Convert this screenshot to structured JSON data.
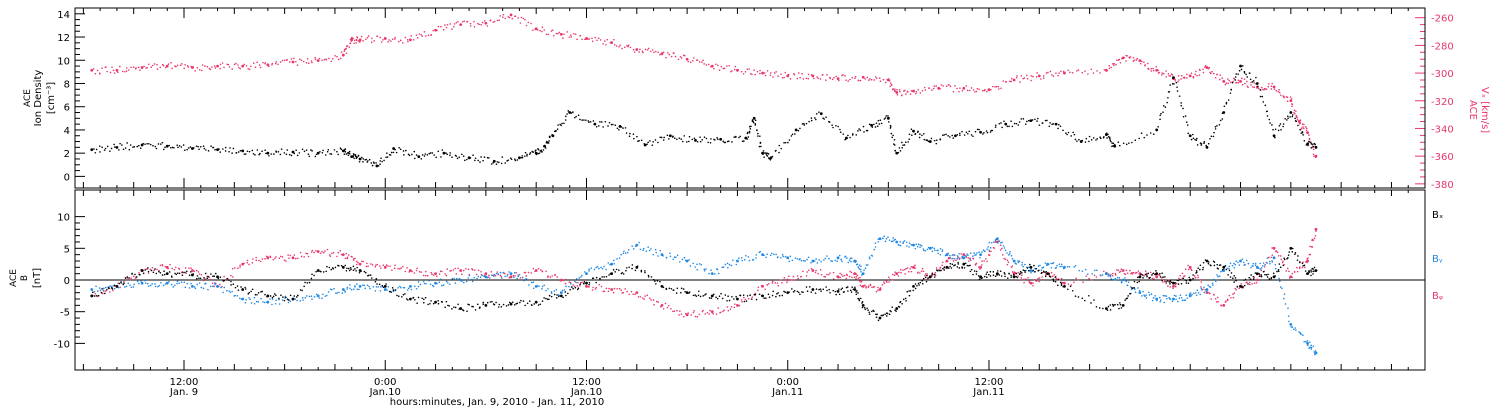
{
  "colors": {
    "black": "#000000",
    "pink": "#e8386a",
    "blue": "#1e88e5",
    "background": "#ffffff"
  },
  "chart_data": [
    {
      "type": "scatter",
      "panel": "top",
      "ylabel_lines": [
        "ACE",
        "Ion Density",
        "[cm⁻³]"
      ],
      "ylim": [
        -1,
        14.5
      ],
      "yticks": [
        0,
        2,
        4,
        6,
        8,
        10,
        12,
        14
      ],
      "y2label_lines": [
        "ACE",
        "Vₓ [km/s]"
      ],
      "y2lim": [
        -383,
        -253
      ],
      "y2ticks": [
        -260,
        -280,
        -300,
        -320,
        -340,
        -360,
        -380
      ],
      "grid": false,
      "series": [
        {
          "axis": "left",
          "color": "#000000",
          "x": [
            6.5,
            8,
            9.5,
            11,
            12.5,
            14,
            15.5,
            17,
            18.5,
            20,
            21.5,
            22,
            22.5,
            23.5,
            24.5,
            26,
            27.5,
            29,
            30.5,
            32,
            33,
            33.5,
            34,
            35,
            36.5,
            38,
            39.5,
            41,
            42.5,
            44,
            45.5,
            46,
            46.5,
            47,
            48.5,
            50,
            51.5,
            53,
            54,
            54.5,
            55.5,
            56.5,
            58,
            59.5,
            61,
            62.5,
            64,
            65.5,
            67,
            67.5,
            70,
            71,
            72,
            73,
            74,
            75,
            76,
            77,
            78,
            79,
            79.5
          ],
          "y": [
            2.3,
            2.5,
            2.7,
            2.6,
            2.4,
            2.3,
            2.2,
            2.0,
            2.1,
            2.0,
            2.2,
            1.7,
            1.5,
            0.9,
            2.4,
            1.7,
            2.0,
            1.6,
            1.3,
            1.6,
            2.0,
            2.6,
            3.5,
            5.5,
            4.5,
            4.3,
            2.7,
            3.5,
            3.1,
            3.2,
            3.3,
            5.0,
            2.0,
            1.6,
            4.0,
            5.4,
            3.3,
            4.4,
            5.0,
            2.0,
            3.9,
            3.0,
            3.5,
            3.8,
            4.5,
            4.8,
            4.5,
            3.0,
            3.6,
            2.6,
            4.0,
            8.5,
            3.5,
            2.5,
            5.5,
            9.5,
            8.0,
            3.5,
            5.5,
            2.8,
            2.5
          ]
        },
        {
          "axis": "right",
          "color": "#e8386a",
          "x": [
            6.5,
            8,
            9.5,
            11,
            12.5,
            14,
            15.5,
            17,
            18.5,
            20,
            21.5,
            22,
            22.5,
            24,
            25.5,
            27,
            28.5,
            30,
            31.5,
            33,
            34.5,
            36,
            37.5,
            39,
            40.5,
            42,
            43.5,
            45,
            46.5,
            48,
            49.5,
            51,
            52.5,
            54,
            54.5,
            55.5,
            57,
            58.5,
            60,
            61.5,
            63,
            64.5,
            67,
            68,
            69,
            70,
            71,
            72,
            73,
            74,
            75,
            76,
            77,
            78,
            78.5,
            79,
            79.5
          ],
          "y": [
            -298,
            -298,
            -296,
            -295,
            -296,
            -295,
            -295,
            -294,
            -292,
            -291,
            -287,
            -276,
            -276,
            -275,
            -276,
            -269,
            -265,
            -264,
            -258,
            -268,
            -272,
            -275,
            -278,
            -283,
            -286,
            -290,
            -295,
            -298,
            -300,
            -302,
            -302,
            -304,
            -303,
            -305,
            -314,
            -313,
            -311,
            -311,
            -312,
            -305,
            -302,
            -300,
            -298,
            -289,
            -291,
            -298,
            -304,
            -302,
            -296,
            -306,
            -306,
            -310,
            -310,
            -320,
            -335,
            -343,
            -360
          ]
        }
      ]
    },
    {
      "type": "scatter",
      "panel": "bottom",
      "ylabel_lines": [
        "ACE",
        "B",
        "[nT]"
      ],
      "ylim": [
        -14.2,
        14.2
      ],
      "yticks": [
        10,
        5,
        0,
        -5,
        -10
      ],
      "zero_line": true,
      "grid": false,
      "series": [
        {
          "name": "Bₓ",
          "color": "#000000",
          "x": [
            6.5,
            8,
            9.5,
            11,
            12.5,
            14,
            15.5,
            17,
            18.5,
            20,
            21.5,
            22.5,
            24,
            25.5,
            27,
            28.5,
            30,
            31.5,
            33,
            34.5,
            36,
            37.5,
            39,
            40.5,
            42,
            43.5,
            45,
            46.5,
            48,
            49.5,
            51,
            52,
            52.5,
            53.5,
            54.5,
            55.5,
            56.5,
            57.5,
            58.5,
            59.5,
            60.5,
            61.5,
            62.5,
            63.5,
            64.5,
            67,
            68,
            69,
            70,
            71,
            72,
            73,
            74,
            75,
            76,
            77,
            78,
            79,
            79.5
          ],
          "y": [
            -2.5,
            -1,
            1.5,
            1.0,
            0.8,
            0.5,
            -1.5,
            -2.5,
            -3.0,
            1.5,
            2.0,
            1.5,
            -1.0,
            -3.0,
            -3.5,
            -4.5,
            -4.0,
            -3.8,
            -3.5,
            -2.5,
            -0.5,
            1.0,
            2.0,
            -1.0,
            -2.0,
            -2.5,
            -3.0,
            -2.5,
            -2.0,
            -1.5,
            -1.8,
            -1.5,
            -4.0,
            -6.0,
            -4.5,
            -1.0,
            0.5,
            2.0,
            2.5,
            0.5,
            1.0,
            0.5,
            2.0,
            1.0,
            -1.0,
            -4.5,
            -4.0,
            0.5,
            1.0,
            -0.5,
            0.0,
            3.0,
            2.0,
            -1.0,
            1.0,
            0.5,
            5.0,
            1.0,
            1.5
          ]
        },
        {
          "name": "Bᵧ",
          "color": "#1e88e5",
          "x": [
            6.5,
            8,
            9.5,
            11,
            12.5,
            14,
            15.5,
            17,
            18.5,
            20,
            21.5,
            22.5,
            24,
            25.5,
            27,
            28.5,
            30,
            31.5,
            33,
            34.5,
            36,
            37.5,
            39,
            40.5,
            42,
            43.5,
            45,
            46.5,
            48,
            49.5,
            51,
            52,
            52.5,
            53.5,
            54.5,
            55.5,
            56.5,
            57.5,
            58.5,
            59.5,
            60.5,
            61.5,
            62.5,
            63.5,
            64.5,
            67,
            68,
            69,
            70,
            71,
            72,
            73,
            74,
            75,
            76,
            77,
            78,
            79,
            79.5
          ],
          "y": [
            -1.5,
            -1,
            -0.5,
            -0.5,
            -1.0,
            -1.0,
            -3.0,
            -3.5,
            -3.0,
            -2.5,
            -1.5,
            -1.0,
            -1.5,
            -1.0,
            -0.5,
            0.0,
            0.5,
            1.0,
            -1.0,
            -2.0,
            1.0,
            2.5,
            5.5,
            4.0,
            3.0,
            1.0,
            3.0,
            4.0,
            3.5,
            3.0,
            3.5,
            3.0,
            1.0,
            6.5,
            6.0,
            5.5,
            5.0,
            4.0,
            3.5,
            4.0,
            6.5,
            3.0,
            1.5,
            2.5,
            2.0,
            1.0,
            0.0,
            -2.0,
            -3.0,
            -3.0,
            -2.5,
            -1.5,
            1.5,
            3.0,
            2.0,
            3.5,
            -7.0,
            -10.0,
            -11.5
          ]
        },
        {
          "name": "Bᵩ",
          "color": "#e8386a",
          "x": [
            6.5,
            8,
            9.5,
            11,
            12.5,
            14,
            15.5,
            17,
            18.5,
            20,
            21.5,
            22.5,
            24,
            25.5,
            27,
            28.5,
            30,
            31.5,
            33,
            34.5,
            36,
            37.5,
            39,
            40.5,
            42,
            43.5,
            45,
            46.5,
            48,
            49.5,
            51,
            52,
            52.5,
            53.5,
            54.5,
            55.5,
            56.5,
            57.5,
            58.5,
            59.5,
            60.5,
            61.5,
            62.5,
            63.5,
            64.5,
            67,
            68,
            69,
            70,
            71,
            72,
            73,
            74,
            75,
            76,
            77,
            78,
            79,
            79.5
          ],
          "y": [
            -2.5,
            -1,
            1.5,
            2.0,
            1.5,
            -1.0,
            2.5,
            3.5,
            3.5,
            4.5,
            4.0,
            2.5,
            2.0,
            1.5,
            1.0,
            1.5,
            1.0,
            0.5,
            1.5,
            0.0,
            -1.0,
            -1.5,
            -2.0,
            -4.0,
            -5.5,
            -5.0,
            -4.0,
            -1.0,
            0.0,
            1.5,
            0.5,
            1.0,
            -1.0,
            -1.5,
            1.0,
            2.0,
            0.5,
            3.0,
            4.0,
            2.0,
            6.0,
            1.0,
            -0.5,
            1.0,
            -0.5,
            1.0,
            1.5,
            1.0,
            0.5,
            -1.0,
            2.0,
            -2.0,
            -4.0,
            -1.0,
            0.0,
            5.0,
            0.5,
            3.0,
            8.0
          ]
        }
      ],
      "legend": [
        "Bₓ",
        "Bᵧ",
        "Bᵩ"
      ]
    }
  ],
  "xaxis": {
    "xlim": [
      5.5,
      86
    ],
    "ticks": [
      {
        "x": 12,
        "time": "12:00",
        "date": "Jan. 9"
      },
      {
        "x": 24,
        "time": "0:00",
        "date": "Jan.10"
      },
      {
        "x": 36,
        "time": "12:00",
        "date": "Jan.10"
      },
      {
        "x": 48,
        "time": "0:00",
        "date": "Jan.11"
      },
      {
        "x": 60,
        "time": "12:00",
        "date": "Jan.11"
      }
    ],
    "xlabel": "hours:minutes, Jan.  9, 2010 - Jan. 11, 2010"
  }
}
